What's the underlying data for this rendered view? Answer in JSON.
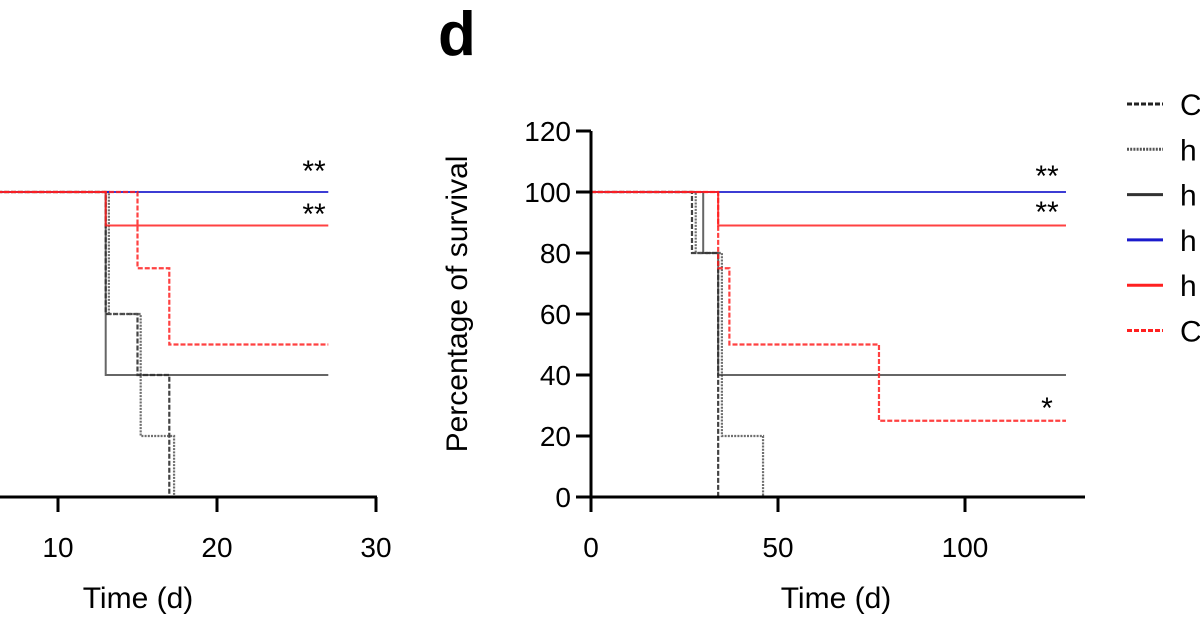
{
  "panel_label": "d",
  "legend": {
    "entries": [
      {
        "label": "C",
        "color": "#222222",
        "style": "dashed"
      },
      {
        "label": "h",
        "color": "#555555",
        "style": "dotted"
      },
      {
        "label": "h",
        "color": "#333333",
        "style": "solid"
      },
      {
        "label": "h",
        "color": "#1a1acc",
        "style": "solid"
      },
      {
        "label": "h",
        "color": "#ff2020",
        "style": "solid"
      },
      {
        "label": "C",
        "color": "#ff2020",
        "style": "dashed"
      }
    ]
  },
  "chart_data": [
    {
      "type": "line",
      "subtype": "kaplan-meier step",
      "xlabel": "Time (d)",
      "ylabel": "",
      "xlim": [
        0,
        30
      ],
      "ylim": [
        0,
        120
      ],
      "x_ticks": [
        "10",
        "20",
        "30"
      ],
      "x_tick_values": [
        10,
        20,
        30
      ],
      "annotations": [
        "**",
        "**"
      ],
      "series": [
        {
          "name": "C",
          "color": "#222222",
          "style": "dashed",
          "steps": [
            [
              0,
              100
            ],
            [
              13,
              60
            ],
            [
              15,
              40
            ],
            [
              17,
              0
            ]
          ],
          "end": 17
        },
        {
          "name": "h",
          "color": "#555555",
          "style": "dotted",
          "steps": [
            [
              0,
              100
            ],
            [
              13.2,
              60
            ],
            [
              15.2,
              20
            ],
            [
              17.3,
              0
            ]
          ],
          "end": 17.3
        },
        {
          "name": "h",
          "color": "#333333",
          "style": "solid",
          "steps": [
            [
              0,
              100
            ],
            [
              13,
              40
            ]
          ],
          "end": 27
        },
        {
          "name": "h",
          "color": "#1a1acc",
          "style": "solid",
          "steps": [
            [
              0,
              100
            ]
          ],
          "end": 27
        },
        {
          "name": "h",
          "color": "#ff2020",
          "style": "solid",
          "steps": [
            [
              0,
              100
            ],
            [
              13,
              89
            ]
          ],
          "end": 27
        },
        {
          "name": "C",
          "color": "#ff2020",
          "style": "dashed",
          "steps": [
            [
              0,
              100
            ],
            [
              15,
              75
            ],
            [
              17,
              50
            ]
          ],
          "end": 27
        }
      ]
    },
    {
      "type": "line",
      "subtype": "kaplan-meier step",
      "xlabel": "Time (d)",
      "ylabel": "Percentage of survival",
      "xlim": [
        0,
        130
      ],
      "ylim": [
        0,
        120
      ],
      "x_ticks": [
        "0",
        "50",
        "100"
      ],
      "x_tick_values": [
        0,
        50,
        100
      ],
      "y_ticks": [
        "0",
        "20",
        "40",
        "60",
        "80",
        "100",
        "120"
      ],
      "y_tick_values": [
        0,
        20,
        40,
        60,
        80,
        100,
        120
      ],
      "annotations": [
        "**",
        "**",
        "*"
      ],
      "series": [
        {
          "name": "C",
          "color": "#222222",
          "style": "dashed",
          "steps": [
            [
              0,
              100
            ],
            [
              27,
              80
            ],
            [
              34,
              0
            ]
          ],
          "end": 34
        },
        {
          "name": "h",
          "color": "#555555",
          "style": "dotted",
          "steps": [
            [
              0,
              100
            ],
            [
              28,
              80
            ],
            [
              35,
              20
            ],
            [
              46,
              0
            ]
          ],
          "end": 46
        },
        {
          "name": "h",
          "color": "#333333",
          "style": "solid",
          "steps": [
            [
              0,
              100
            ],
            [
              30,
              80
            ],
            [
              34,
              40
            ]
          ],
          "end": 127
        },
        {
          "name": "h",
          "color": "#1a1acc",
          "style": "solid",
          "steps": [
            [
              0,
              100
            ]
          ],
          "end": 127
        },
        {
          "name": "h",
          "color": "#ff2020",
          "style": "solid",
          "steps": [
            [
              0,
              100
            ],
            [
              34,
              89
            ]
          ],
          "end": 127
        },
        {
          "name": "C",
          "color": "#ff2020",
          "style": "dashed",
          "steps": [
            [
              0,
              100
            ],
            [
              34,
              75
            ],
            [
              37,
              50
            ],
            [
              77,
              25
            ]
          ],
          "end": 127
        }
      ]
    }
  ]
}
